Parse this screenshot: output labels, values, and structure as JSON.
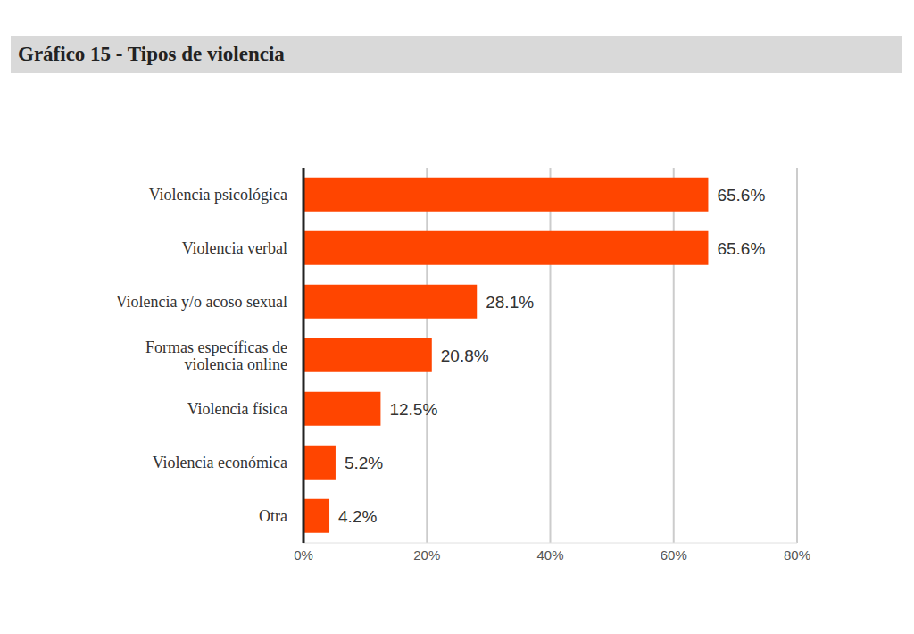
{
  "chart_data": {
    "type": "bar",
    "title": "Gráfico 15 - Tipos de violencia",
    "orientation": "horizontal",
    "categories": [
      "Violencia psicológica",
      "Violencia verbal",
      "Violencia y/o acoso sexual",
      "Formas específicas de violencia online",
      "Violencia física",
      "Violencia económica",
      "Otra"
    ],
    "values": [
      65.6,
      65.6,
      28.1,
      20.8,
      12.5,
      5.2,
      4.2
    ],
    "value_labels": [
      "65.6%",
      "65.6%",
      "28.1%",
      "20.8%",
      "12.5%",
      "5.2%",
      "4.2%"
    ],
    "color": "#ff4500",
    "xlim": [
      0,
      80
    ],
    "xticks": [
      {
        "value": 0,
        "label": "0%"
      },
      {
        "value": 20,
        "label": "20%"
      },
      {
        "value": 40,
        "label": "40%"
      },
      {
        "value": 60,
        "label": "60%"
      },
      {
        "value": 80,
        "label": "80%"
      }
    ],
    "grid": true,
    "data_labels": true
  }
}
